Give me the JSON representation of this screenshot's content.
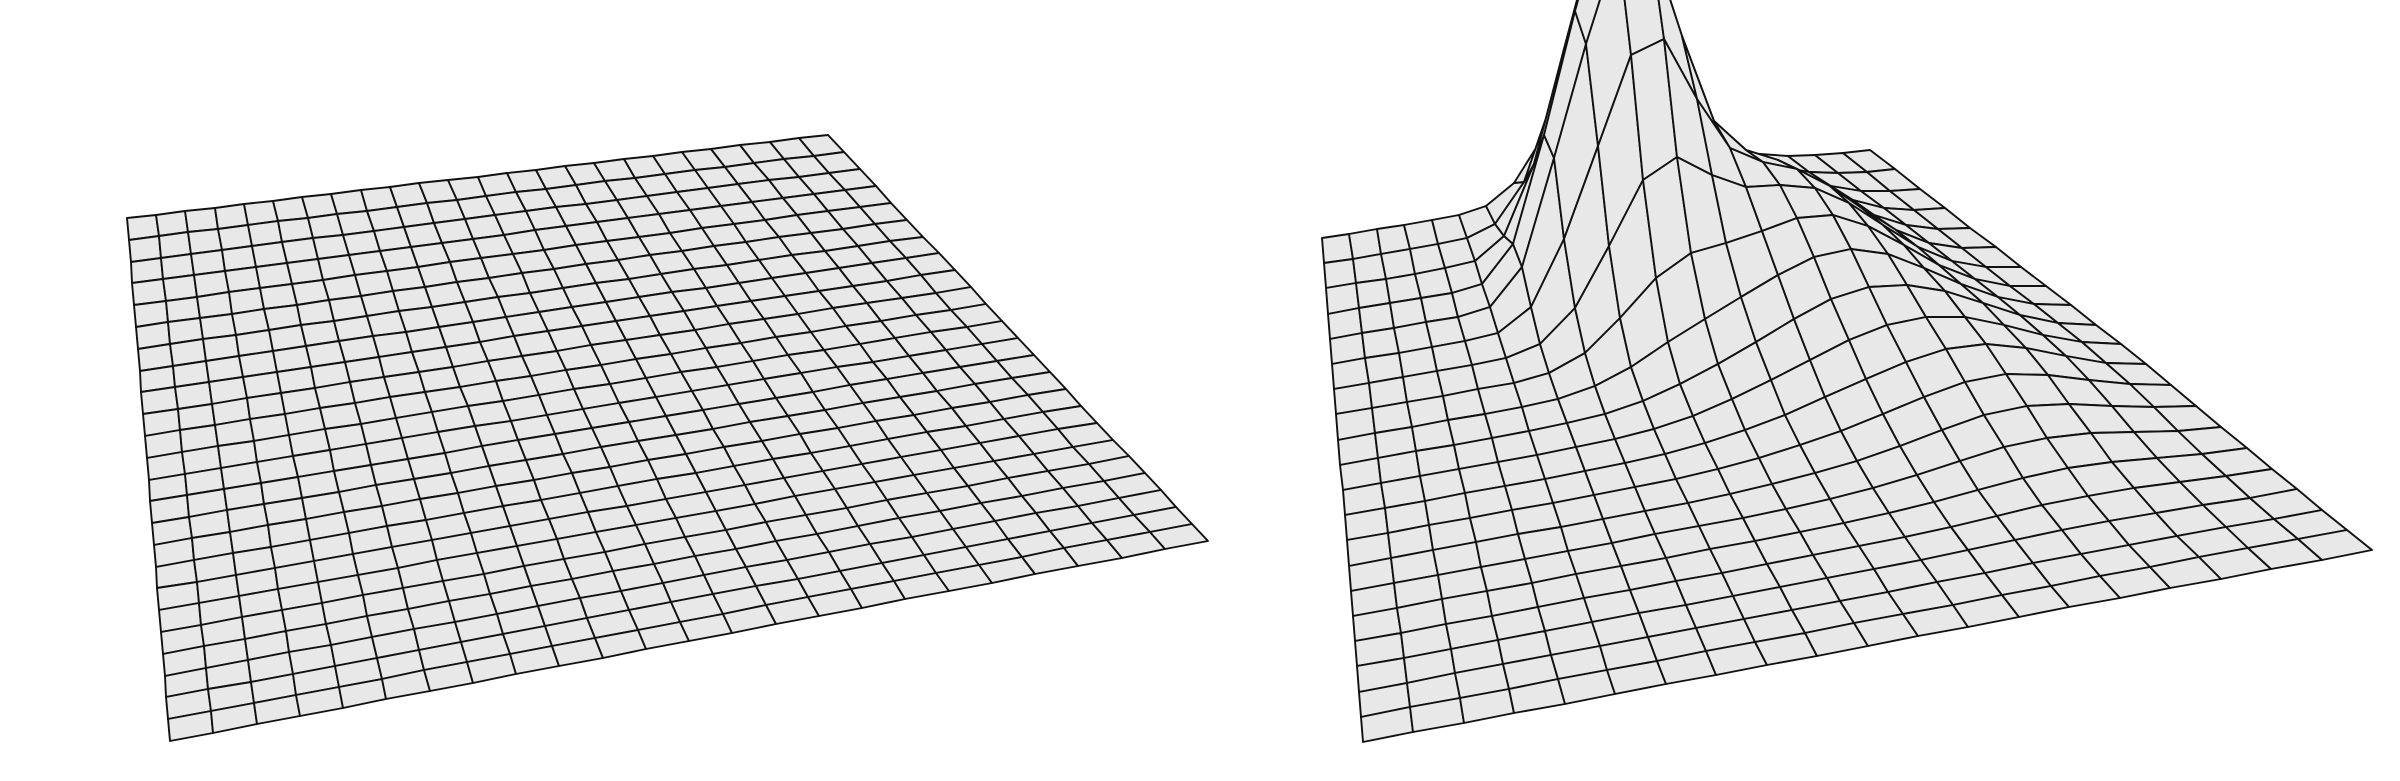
{
  "panels": [
    {
      "name": "flat-mesh",
      "surface": "flat",
      "resolution": 24
    },
    {
      "name": "deformed-mesh",
      "surface": "peaked",
      "resolution": 20
    }
  ],
  "colors": {
    "background": "#ffffff",
    "face": "#e8e8e8",
    "edge": "#111111"
  }
}
